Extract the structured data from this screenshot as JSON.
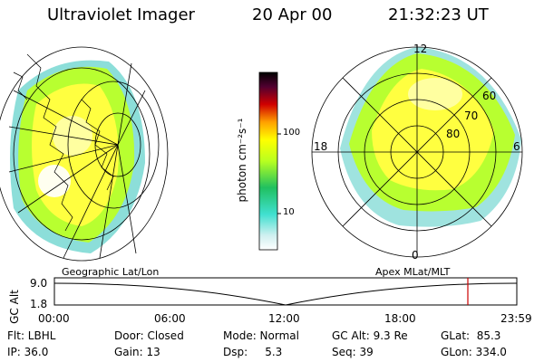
{
  "header": {
    "title": "Ultraviolet Imager",
    "date": "20 Apr 00",
    "time": "21:32:23 UT"
  },
  "colorbar": {
    "unit": "photon cm⁻²s⁻¹",
    "ticks": [
      "100",
      "10"
    ],
    "colors": [
      "#e8e8e8",
      "#40e0d0",
      "#00b050",
      "#c8ff00",
      "#ffff00",
      "#ffa000",
      "#c00000",
      "#400040",
      "#000000"
    ]
  },
  "polar": {
    "mlt_labels": {
      "top": "12",
      "left": "18",
      "right": "6",
      "bottom": "0"
    },
    "lat_labels": [
      "60",
      "70",
      "80"
    ]
  },
  "timeline": {
    "left_label": "Geographic Lat/Lon",
    "right_label": "Apex MLat/MLT",
    "axis_label": "GC Alt",
    "y_ticks": [
      "9.0",
      "1.8"
    ],
    "x_ticks": [
      "00:00",
      "06:00",
      "12:00",
      "18:00",
      "23:59"
    ],
    "marker_color": "#cc0000"
  },
  "info": {
    "col1": [
      "Flt: LBHL",
      "IP: 36.0"
    ],
    "col2": [
      "Door: Closed",
      "Gain: 13"
    ],
    "col3": [
      "Mode: Normal",
      "Dsp:     5.3"
    ],
    "col4": [
      "GC Alt: 9.3 Re",
      "Seq: 39"
    ],
    "col5": [
      "GLat:  85.3",
      "GLon: 334.0"
    ]
  }
}
